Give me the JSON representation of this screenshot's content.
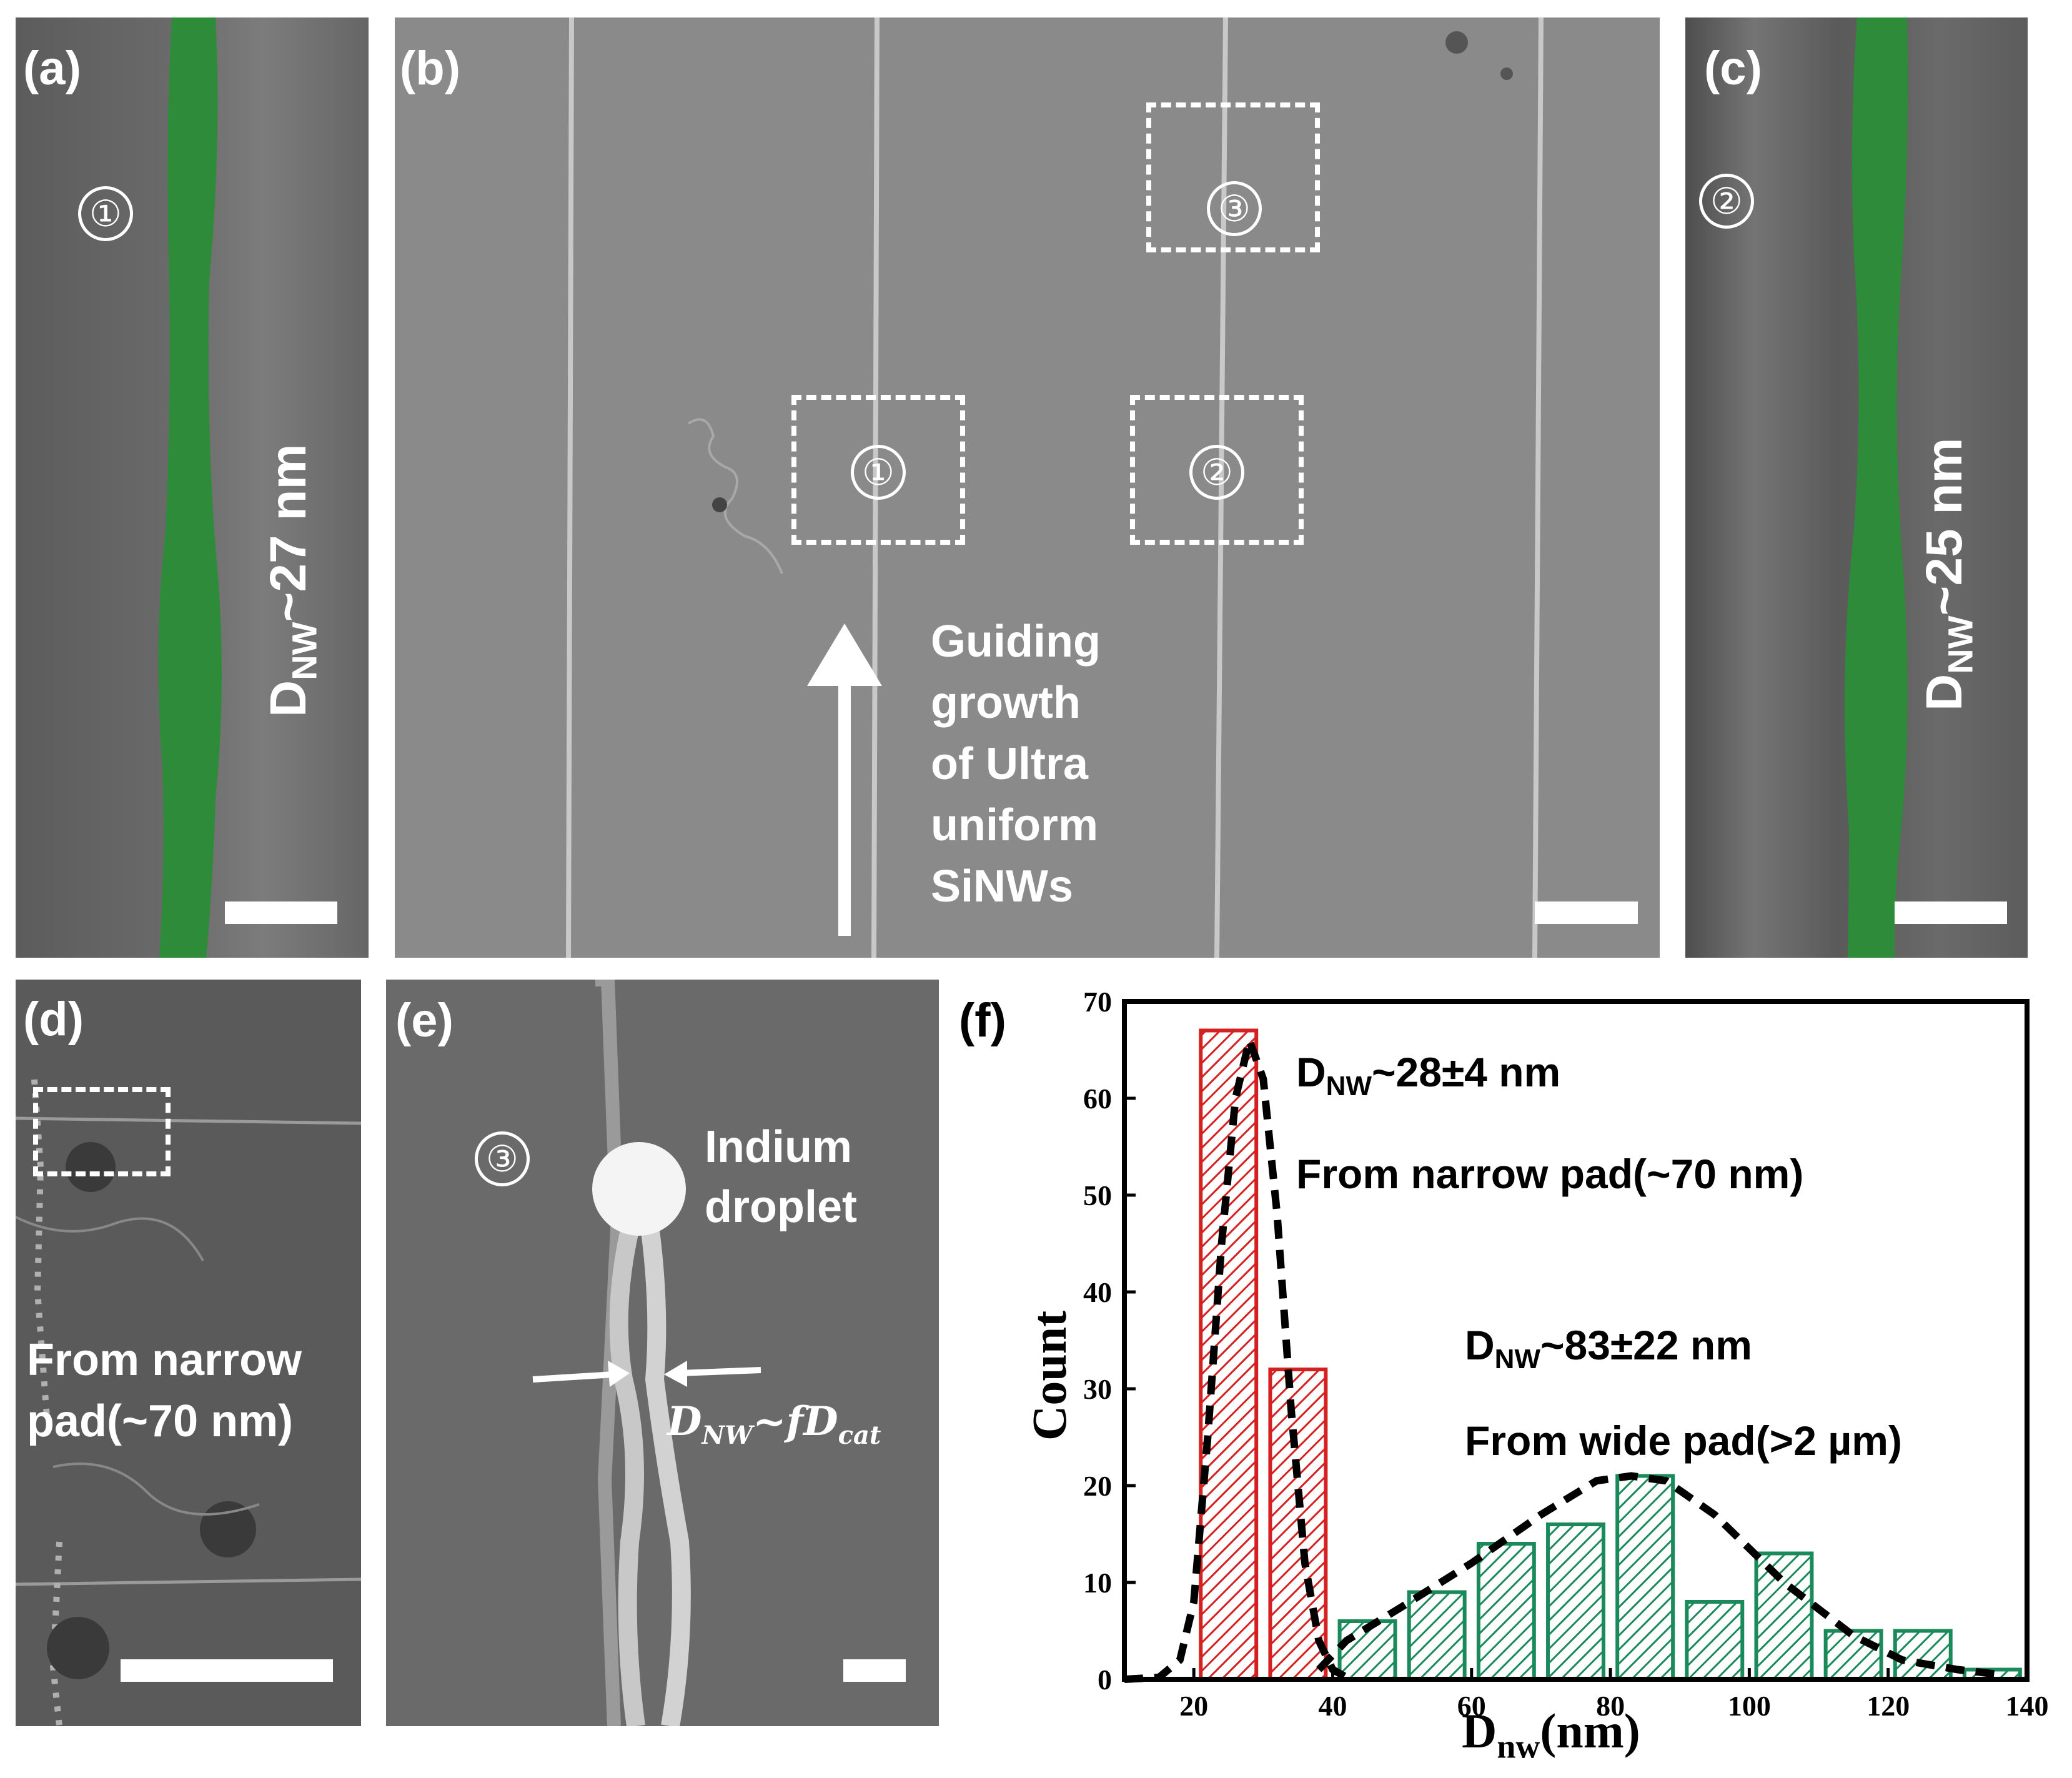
{
  "panels": {
    "a": {
      "label": "(a)",
      "region_marker": "①",
      "diameter_prefix": "D",
      "diameter_sub": "NW",
      "diameter_value": "~27 nm",
      "nanowire_color": "#2e8b3a"
    },
    "b": {
      "label": "(b)",
      "markers": [
        "①",
        "②",
        "③"
      ],
      "annotation_lines": [
        "Guiding",
        "growth",
        "of Ultra",
        "uniform",
        "SiNWs"
      ]
    },
    "c": {
      "label": "(c)",
      "region_marker": "②",
      "diameter_prefix": "D",
      "diameter_sub": "NW",
      "diameter_value": "~25 nm",
      "nanowire_color": "#2e8b3a"
    },
    "d": {
      "label": "(d)",
      "text_line1": "From narrow",
      "text_line2": "pad(~70 nm)"
    },
    "e": {
      "label": "(e)",
      "region_marker": "③",
      "droplet_line1": "Indium",
      "droplet_line2": "droplet",
      "formula": "D",
      "formula_sub": "NW",
      "formula_rest": "~fD",
      "formula_sub2": "cat"
    },
    "f": {
      "label": "(f)"
    }
  },
  "chart_data": {
    "type": "bar",
    "xlabel": "D",
    "xlabel_sub": "nw",
    "xlabel_unit": "(nm)",
    "ylabel": "Count",
    "xlim": [
      10,
      140
    ],
    "ylim": [
      0,
      70
    ],
    "xticks": [
      20,
      40,
      60,
      80,
      100,
      120,
      140
    ],
    "yticks": [
      0,
      10,
      20,
      30,
      40,
      50,
      60,
      70
    ],
    "series": [
      {
        "color": "#d42020",
        "bins": [
          {
            "x0": 21,
            "x1": 29,
            "count": 67
          },
          {
            "x0": 31,
            "x1": 39,
            "count": 32
          }
        ],
        "fit_curve": [
          [
            10,
            0
          ],
          [
            15,
            0.2
          ],
          [
            18,
            2
          ],
          [
            20,
            8
          ],
          [
            22,
            25
          ],
          [
            24,
            45
          ],
          [
            26,
            60
          ],
          [
            28,
            66
          ],
          [
            30,
            62
          ],
          [
            32,
            48
          ],
          [
            34,
            28
          ],
          [
            36,
            12
          ],
          [
            38,
            4
          ],
          [
            40,
            1
          ],
          [
            42,
            0.2
          ]
        ],
        "annotation_prefix": "D",
        "annotation_sub": "NW",
        "annotation_value": "~28±4 nm",
        "annotation_line2": "From narrow pad(~70 nm)"
      },
      {
        "color": "#1a8a5a",
        "bins": [
          {
            "x0": 41,
            "x1": 49,
            "count": 6
          },
          {
            "x0": 51,
            "x1": 59,
            "count": 9
          },
          {
            "x0": 61,
            "x1": 69,
            "count": 14
          },
          {
            "x0": 71,
            "x1": 79,
            "count": 16
          },
          {
            "x0": 81,
            "x1": 89,
            "count": 21
          },
          {
            "x0": 91,
            "x1": 99,
            "count": 8
          },
          {
            "x0": 101,
            "x1": 109,
            "count": 13
          },
          {
            "x0": 111,
            "x1": 119,
            "count": 5
          },
          {
            "x0": 121,
            "x1": 129,
            "count": 5
          },
          {
            "x0": 131,
            "x1": 139,
            "count": 1
          }
        ],
        "fit_curve": [
          [
            38,
            1
          ],
          [
            42,
            4
          ],
          [
            50,
            7.5
          ],
          [
            60,
            12
          ],
          [
            70,
            17
          ],
          [
            78,
            20.5
          ],
          [
            83,
            21
          ],
          [
            88,
            20.5
          ],
          [
            95,
            17
          ],
          [
            105,
            10
          ],
          [
            115,
            4.5
          ],
          [
            122,
            2
          ],
          [
            130,
            1
          ],
          [
            136,
            0.5
          ]
        ],
        "annotation_prefix": "D",
        "annotation_sub": "NW",
        "annotation_value": "~83±22 nm",
        "annotation_line2": "From wide pad(>2 µm)"
      }
    ]
  }
}
